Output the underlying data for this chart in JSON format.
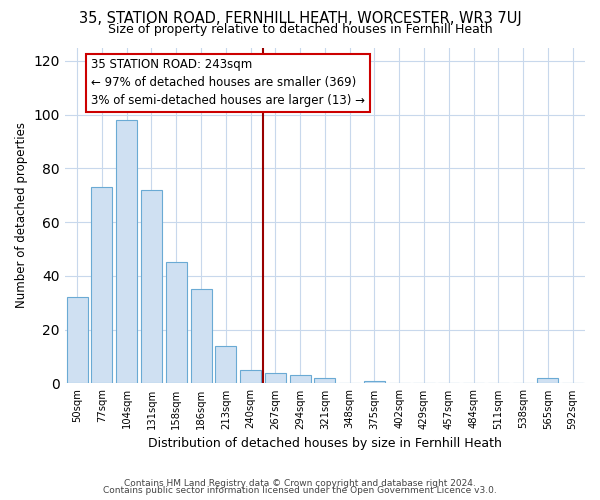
{
  "title": "35, STATION ROAD, FERNHILL HEATH, WORCESTER, WR3 7UJ",
  "subtitle": "Size of property relative to detached houses in Fernhill Heath",
  "xlabel": "Distribution of detached houses by size in Fernhill Heath",
  "ylabel": "Number of detached properties",
  "bar_labels": [
    "50sqm",
    "77sqm",
    "104sqm",
    "131sqm",
    "158sqm",
    "186sqm",
    "213sqm",
    "240sqm",
    "267sqm",
    "294sqm",
    "321sqm",
    "348sqm",
    "375sqm",
    "402sqm",
    "429sqm",
    "457sqm",
    "484sqm",
    "511sqm",
    "538sqm",
    "565sqm",
    "592sqm"
  ],
  "bar_values": [
    32,
    73,
    98,
    72,
    45,
    35,
    14,
    5,
    4,
    3,
    2,
    0,
    1,
    0,
    0,
    0,
    0,
    0,
    0,
    2,
    0
  ],
  "bar_color": "#cfe0f2",
  "bar_edge_color": "#6aaad4",
  "property_line_x": 7.5,
  "property_line_color": "#990000",
  "annotation_box_title": "35 STATION ROAD: 243sqm",
  "annotation_line1": "← 97% of detached houses are smaller (369)",
  "annotation_line2": "3% of semi-detached houses are larger (13) →",
  "annotation_box_color": "#cc0000",
  "ylim": [
    0,
    125
  ],
  "yticks": [
    0,
    20,
    40,
    60,
    80,
    100,
    120
  ],
  "footer1": "Contains HM Land Registry data © Crown copyright and database right 2024.",
  "footer2": "Contains public sector information licensed under the Open Government Licence v3.0.",
  "background_color": "#ffffff",
  "grid_color": "#c8d8ec"
}
